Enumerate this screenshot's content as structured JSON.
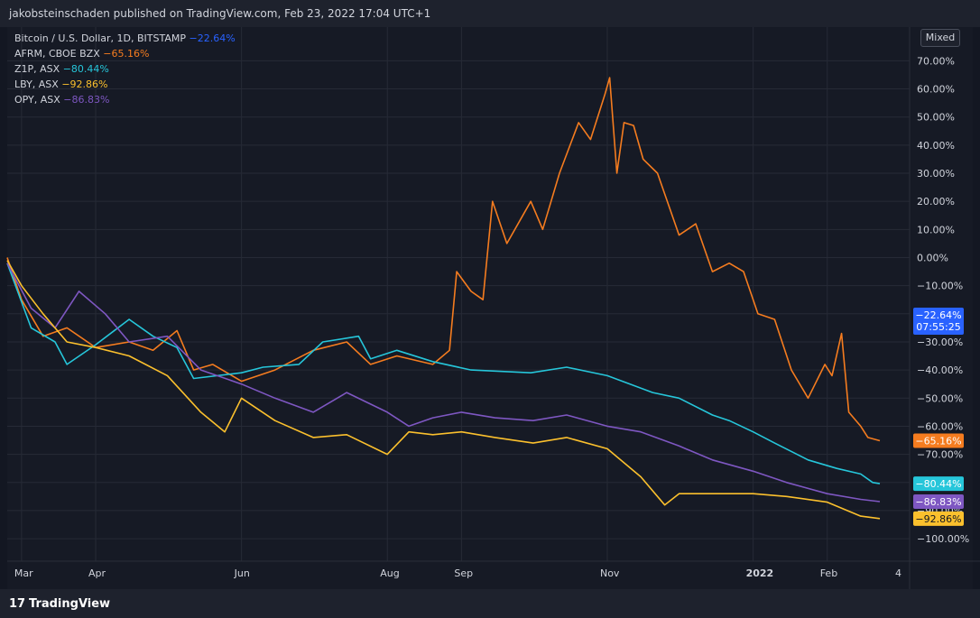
{
  "header": {
    "published": "jakobsteinschaden published on TradingView.com, Feb 23, 2022 17:04 UTC+1"
  },
  "footer": {
    "brand": "TradingView"
  },
  "scale_mode": "Mixed",
  "colors": {
    "btc": "#2962ff",
    "afrm": "#f57c1f",
    "z1p": "#26c6da",
    "lby": "#fbc02d",
    "opy": "#7e57c2"
  },
  "legend": [
    {
      "name": "Bitcoin / U.S. Dollar, 1D, BITSTAMP",
      "change": "−22.64%",
      "color": "#2962ff"
    },
    {
      "name": "AFRM, CBOE BZX",
      "change": "−65.16%",
      "color": "#f57c1f"
    },
    {
      "name": "Z1P, ASX",
      "change": "−80.44%",
      "color": "#26c6da"
    },
    {
      "name": "LBY, ASX",
      "change": "−92.86%",
      "color": "#fbc02d"
    },
    {
      "name": "OPY, ASX",
      "change": "−86.83%",
      "color": "#7e57c2"
    }
  ],
  "chart_data": {
    "type": "line",
    "x_labels": [
      "Mar",
      "Apr",
      "Jun",
      "Aug",
      "Sep",
      "Nov",
      "2022",
      "Feb",
      "4"
    ],
    "y_ticks": [
      "70.00%",
      "60.00%",
      "50.00%",
      "40.00%",
      "30.00%",
      "20.00%",
      "10.00%",
      "0.00%",
      "−10.00%",
      "−20.00%",
      "−30.00%",
      "−40.00%",
      "−50.00%",
      "−60.00%",
      "−70.00%",
      "−80.00%",
      "−90.00%",
      "−100.00%"
    ],
    "y_ticks_value": [
      70,
      60,
      50,
      40,
      30,
      20,
      10,
      0,
      -10,
      -20,
      -30,
      -40,
      -50,
      -60,
      -70,
      -80,
      -90,
      -100
    ],
    "ylim": [
      -108,
      82
    ],
    "x_dates": [
      "2021-02-23",
      "2021-03-01",
      "2021-04-01",
      "2021-06-01",
      "2021-08-01",
      "2021-09-01",
      "2021-11-01",
      "2022-01-01",
      "2022-02-01",
      "2022-02-23"
    ],
    "badges": [
      {
        "label": "−22.64%",
        "sub": "07:55:25",
        "value": -22.64,
        "color": "#2962ff"
      },
      {
        "label": "−65.16%",
        "value": -65.16,
        "color": "#f57c1f"
      },
      {
        "label": "−80.44%",
        "value": -80.44,
        "color": "#26c6da"
      },
      {
        "label": "−86.83%",
        "value": -86.83,
        "color": "#7e57c2"
      },
      {
        "label": "−92.86%",
        "value": -92.86,
        "color": "#fbc02d"
      }
    ],
    "series": [
      {
        "name": "AFRM, CBOE BZX",
        "color": "#f57c1f",
        "points": [
          [
            "2021-02-23",
            0
          ],
          [
            "2021-03-01",
            -15
          ],
          [
            "2021-03-10",
            -28
          ],
          [
            "2021-03-20",
            -25
          ],
          [
            "2021-04-01",
            -32
          ],
          [
            "2021-04-15",
            -30
          ],
          [
            "2021-04-25",
            -33
          ],
          [
            "2021-05-05",
            -26
          ],
          [
            "2021-05-12",
            -40
          ],
          [
            "2021-05-20",
            -38
          ],
          [
            "2021-06-01",
            -44
          ],
          [
            "2021-06-15",
            -40
          ],
          [
            "2021-07-01",
            -33
          ],
          [
            "2021-07-15",
            -30
          ],
          [
            "2021-07-25",
            -38
          ],
          [
            "2021-08-05",
            -35
          ],
          [
            "2021-08-20",
            -38
          ],
          [
            "2021-08-27",
            -33
          ],
          [
            "2021-08-30",
            -5
          ],
          [
            "2021-09-05",
            -12
          ],
          [
            "2021-09-10",
            -15
          ],
          [
            "2021-09-14",
            20
          ],
          [
            "2021-09-20",
            5
          ],
          [
            "2021-09-30",
            20
          ],
          [
            "2021-10-05",
            10
          ],
          [
            "2021-10-12",
            30
          ],
          [
            "2021-10-20",
            48
          ],
          [
            "2021-10-25",
            42
          ],
          [
            "2021-10-31",
            58
          ],
          [
            "2021-11-02",
            64
          ],
          [
            "2021-11-05",
            30
          ],
          [
            "2021-11-08",
            48
          ],
          [
            "2021-11-12",
            47
          ],
          [
            "2021-11-16",
            35
          ],
          [
            "2021-11-22",
            30
          ],
          [
            "2021-12-01",
            8
          ],
          [
            "2021-12-08",
            12
          ],
          [
            "2021-12-15",
            -5
          ],
          [
            "2021-12-22",
            -2
          ],
          [
            "2021-12-28",
            -5
          ],
          [
            "2022-01-03",
            -20
          ],
          [
            "2022-01-10",
            -22
          ],
          [
            "2022-01-17",
            -40
          ],
          [
            "2022-01-24",
            -50
          ],
          [
            "2022-01-31",
            -38
          ],
          [
            "2022-02-03",
            -42
          ],
          [
            "2022-02-07",
            -27
          ],
          [
            "2022-02-10",
            -55
          ],
          [
            "2022-02-15",
            -60
          ],
          [
            "2022-02-18",
            -64
          ],
          [
            "2022-02-23",
            -65.16
          ]
        ]
      },
      {
        "name": "Z1P, ASX",
        "color": "#26c6da",
        "points": [
          [
            "2021-02-23",
            -2
          ],
          [
            "2021-03-05",
            -25
          ],
          [
            "2021-03-15",
            -30
          ],
          [
            "2021-03-20",
            -38
          ],
          [
            "2021-04-01",
            -31
          ],
          [
            "2021-04-15",
            -22
          ],
          [
            "2021-04-25",
            -28
          ],
          [
            "2021-05-05",
            -32
          ],
          [
            "2021-05-12",
            -43
          ],
          [
            "2021-06-01",
            -41
          ],
          [
            "2021-06-10",
            -39
          ],
          [
            "2021-06-25",
            -38
          ],
          [
            "2021-07-05",
            -30
          ],
          [
            "2021-07-20",
            -28
          ],
          [
            "2021-07-25",
            -36
          ],
          [
            "2021-08-05",
            -33
          ],
          [
            "2021-08-20",
            -37
          ],
          [
            "2021-09-05",
            -40
          ],
          [
            "2021-09-30",
            -41
          ],
          [
            "2021-10-15",
            -39
          ],
          [
            "2021-11-01",
            -42
          ],
          [
            "2021-11-20",
            -48
          ],
          [
            "2021-12-01",
            -50
          ],
          [
            "2021-12-15",
            -56
          ],
          [
            "2021-12-22",
            -58
          ],
          [
            "2022-01-01",
            -62
          ],
          [
            "2022-01-10",
            -66
          ],
          [
            "2022-01-24",
            -72
          ],
          [
            "2022-02-05",
            -75
          ],
          [
            "2022-02-15",
            -77
          ],
          [
            "2022-02-20",
            -80
          ],
          [
            "2022-02-23",
            -80.44
          ]
        ]
      },
      {
        "name": "OPY, ASX",
        "color": "#7e57c2",
        "points": [
          [
            "2021-02-23",
            -2
          ],
          [
            "2021-03-05",
            -18
          ],
          [
            "2021-03-15",
            -25
          ],
          [
            "2021-03-25",
            -12
          ],
          [
            "2021-04-05",
            -20
          ],
          [
            "2021-04-15",
            -30
          ],
          [
            "2021-05-01",
            -28
          ],
          [
            "2021-05-15",
            -40
          ],
          [
            "2021-06-01",
            -45
          ],
          [
            "2021-06-15",
            -50
          ],
          [
            "2021-07-01",
            -55
          ],
          [
            "2021-07-15",
            -48
          ],
          [
            "2021-08-01",
            -55
          ],
          [
            "2021-08-10",
            -60
          ],
          [
            "2021-08-20",
            -57
          ],
          [
            "2021-09-01",
            -55
          ],
          [
            "2021-09-15",
            -57
          ],
          [
            "2021-10-01",
            -58
          ],
          [
            "2021-10-15",
            -56
          ],
          [
            "2021-11-01",
            -60
          ],
          [
            "2021-11-15",
            -62
          ],
          [
            "2021-12-01",
            -67
          ],
          [
            "2021-12-15",
            -72
          ],
          [
            "2022-01-01",
            -76
          ],
          [
            "2022-01-15",
            -80
          ],
          [
            "2022-02-01",
            -84
          ],
          [
            "2022-02-15",
            -86
          ],
          [
            "2022-02-23",
            -86.83
          ]
        ]
      },
      {
        "name": "LBY, ASX",
        "color": "#fbc02d",
        "points": [
          [
            "2021-02-23",
            -1
          ],
          [
            "2021-03-01",
            -10
          ],
          [
            "2021-03-10",
            -20
          ],
          [
            "2021-03-20",
            -30
          ],
          [
            "2021-04-01",
            -32
          ],
          [
            "2021-04-15",
            -35
          ],
          [
            "2021-05-01",
            -42
          ],
          [
            "2021-05-15",
            -55
          ],
          [
            "2021-05-25",
            -62
          ],
          [
            "2021-06-01",
            -50
          ],
          [
            "2021-06-15",
            -58
          ],
          [
            "2021-07-01",
            -64
          ],
          [
            "2021-07-15",
            -63
          ],
          [
            "2021-08-01",
            -70
          ],
          [
            "2021-08-10",
            -62
          ],
          [
            "2021-08-20",
            -63
          ],
          [
            "2021-09-01",
            -62
          ],
          [
            "2021-09-15",
            -64
          ],
          [
            "2021-10-01",
            -66
          ],
          [
            "2021-10-15",
            -64
          ],
          [
            "2021-11-01",
            -68
          ],
          [
            "2021-11-15",
            -78
          ],
          [
            "2021-11-25",
            -88
          ],
          [
            "2021-12-01",
            -84
          ],
          [
            "2021-12-15",
            -84
          ],
          [
            "2022-01-01",
            -84
          ],
          [
            "2022-01-15",
            -85
          ],
          [
            "2022-02-01",
            -87
          ],
          [
            "2022-02-15",
            -92
          ],
          [
            "2022-02-23",
            -92.86
          ]
        ]
      }
    ]
  }
}
